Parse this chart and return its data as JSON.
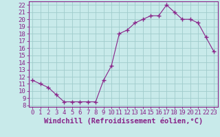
{
  "x": [
    0,
    1,
    2,
    3,
    4,
    5,
    6,
    7,
    8,
    9,
    10,
    11,
    12,
    13,
    14,
    15,
    16,
    17,
    18,
    19,
    20,
    21,
    22,
    23
  ],
  "y": [
    11.5,
    11.0,
    10.5,
    9.5,
    8.5,
    8.5,
    8.5,
    8.5,
    8.5,
    11.5,
    13.5,
    18.0,
    18.5,
    19.5,
    20.0,
    20.5,
    20.5,
    22.0,
    21.0,
    20.0,
    20.0,
    19.5,
    17.5,
    15.5
  ],
  "line_color": "#882288",
  "marker": "+",
  "marker_color": "#882288",
  "bg_color": "#c8eaea",
  "grid_color": "#a0cccc",
  "xlabel": "Windchill (Refroidissement éolien,°C)",
  "ylabel_ticks": [
    8,
    9,
    10,
    11,
    12,
    13,
    14,
    15,
    16,
    17,
    18,
    19,
    20,
    21,
    22
  ],
  "xlim": [
    -0.5,
    23.5
  ],
  "ylim": [
    7.8,
    22.5
  ],
  "tick_fontsize": 6.5,
  "label_fontsize": 7.5,
  "axis_color": "#882288"
}
